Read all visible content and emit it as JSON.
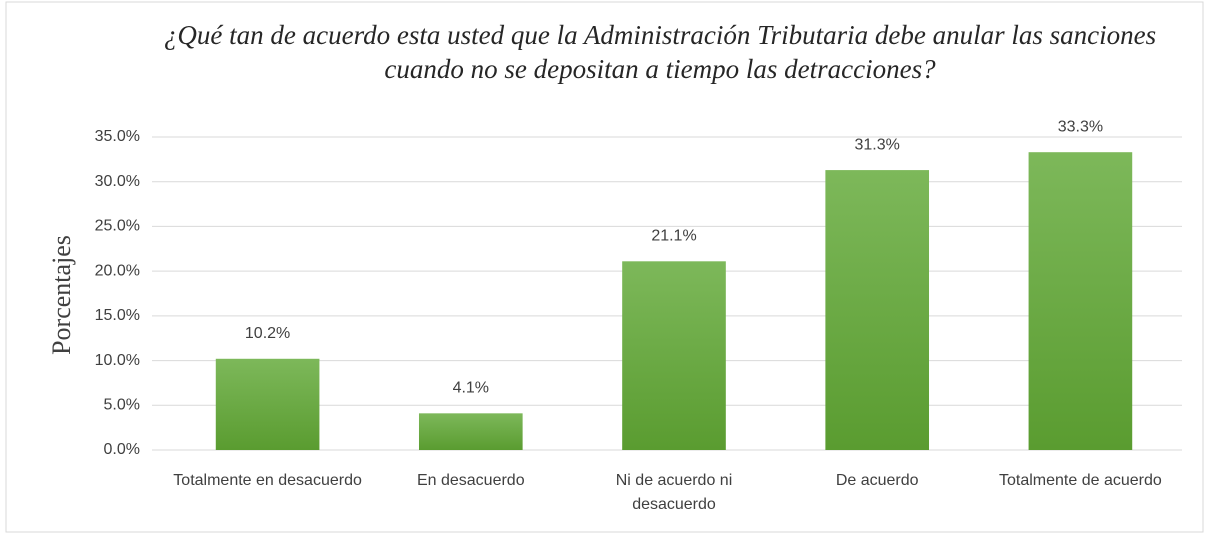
{
  "chart_data": {
    "type": "bar",
    "title": "¿Qué tan de acuerdo esta usted que la Administración Tributaria debe anular las sanciones cuando no se depositan a tiempo las detracciones?",
    "y_label": "Porcentajes",
    "categories": [
      "Totalmente en desacuerdo",
      "En desacuerdo",
      "Ni de acuerdo ni desacuerdo",
      "De acuerdo",
      "Totalmente de acuerdo"
    ],
    "values": [
      10.2,
      4.1,
      21.1,
      31.3,
      33.3
    ],
    "value_labels": [
      "10.2%",
      "4.1%",
      "21.1%",
      "31.3%",
      "33.3%"
    ],
    "color": "#70ad47",
    "ylim": [
      0,
      35
    ],
    "yticks": [
      {
        "value": 0,
        "label": "0.0%"
      },
      {
        "value": 5,
        "label": "5.0%"
      },
      {
        "value": 10,
        "label": "10.0%"
      },
      {
        "value": 15,
        "label": "15.0%"
      },
      {
        "value": 20,
        "label": "20.0%"
      },
      {
        "value": 25,
        "label": "25.0%"
      },
      {
        "value": 30,
        "label": "30.0%"
      },
      {
        "value": 35,
        "label": "35.0%"
      }
    ],
    "grid": true
  }
}
